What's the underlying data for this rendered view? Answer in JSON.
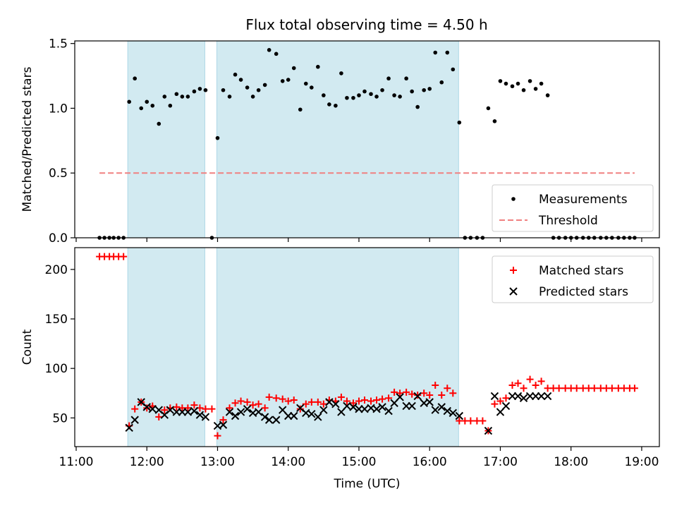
{
  "title": "Flux total observing time = 4.50 h",
  "colors": {
    "shade": "#add8e6",
    "measurement": "#000000",
    "threshold": "#f08080",
    "matched": "#ff0000",
    "predicted": "#000000"
  },
  "chart_data": [
    {
      "type": "scatter",
      "ylabel": "Matched/Predicted stars",
      "xlim": [
        10.98,
        19.25
      ],
      "ylim": [
        0,
        1.52
      ],
      "yticks": [
        0,
        0.5,
        1.0,
        1.5
      ],
      "ytick_labels": [
        "0.0",
        "0.5",
        "1.0",
        "1.5"
      ],
      "shaded_intervals": [
        [
          11.73,
          12.82
        ],
        [
          12.99,
          16.41
        ]
      ],
      "legend": {
        "position": "lower right",
        "entries": [
          "Measurements",
          "Threshold"
        ]
      },
      "threshold": {
        "name": "Threshold",
        "y": 0.5,
        "x_range": [
          11.33,
          18.9
        ]
      },
      "series": [
        {
          "name": "Measurements",
          "x": [
            11.33,
            11.4,
            11.47,
            11.53,
            11.6,
            11.67,
            11.75,
            11.83,
            11.92,
            12.0,
            12.08,
            12.17,
            12.25,
            12.33,
            12.42,
            12.5,
            12.58,
            12.67,
            12.75,
            12.83,
            12.92,
            13.0,
            13.08,
            13.17,
            13.25,
            13.33,
            13.42,
            13.5,
            13.58,
            13.67,
            13.73,
            13.83,
            13.92,
            14.0,
            14.08,
            14.17,
            14.25,
            14.33,
            14.42,
            14.5,
            14.58,
            14.67,
            14.75,
            14.83,
            14.92,
            15.0,
            15.08,
            15.17,
            15.25,
            15.33,
            15.42,
            15.5,
            15.58,
            15.67,
            15.75,
            15.83,
            15.92,
            16.0,
            16.08,
            16.17,
            16.25,
            16.33,
            16.42,
            16.5,
            16.58,
            16.67,
            16.75,
            16.83,
            16.92,
            17.0,
            17.08,
            17.17,
            17.25,
            17.33,
            17.42,
            17.5,
            17.58,
            17.67,
            17.75,
            17.83,
            17.92,
            18.0,
            18.08,
            18.17,
            18.25,
            18.33,
            18.42,
            18.5,
            18.58,
            18.67,
            18.75,
            18.83,
            18.9
          ],
          "y": [
            0,
            0,
            0,
            0,
            0,
            0,
            1.05,
            1.23,
            1.0,
            1.05,
            1.02,
            0.88,
            1.09,
            1.02,
            1.11,
            1.09,
            1.09,
            1.13,
            1.15,
            1.14,
            0.0,
            0.77,
            1.14,
            1.09,
            1.26,
            1.22,
            1.16,
            1.09,
            1.14,
            1.18,
            1.45,
            1.42,
            1.21,
            1.22,
            1.31,
            0.99,
            1.19,
            1.16,
            1.32,
            1.1,
            1.03,
            1.02,
            1.27,
            1.08,
            1.08,
            1.1,
            1.13,
            1.11,
            1.09,
            1.14,
            1.23,
            1.1,
            1.09,
            1.23,
            1.13,
            1.01,
            1.14,
            1.15,
            1.43,
            1.2,
            1.43,
            1.3,
            0.89,
            0,
            0,
            0,
            0,
            1.0,
            0.9,
            1.21,
            1.19,
            1.17,
            1.19,
            1.14,
            1.21,
            1.15,
            1.19,
            1.1,
            0,
            0,
            0,
            0,
            0,
            0,
            0,
            0,
            0,
            0,
            0,
            0,
            0,
            0,
            0
          ]
        }
      ]
    },
    {
      "type": "scatter",
      "ylabel": "Count",
      "xlabel": "Time (UTC)",
      "xlim": [
        10.98,
        19.25
      ],
      "ylim": [
        21,
        222
      ],
      "xticks": [
        11,
        12,
        13,
        14,
        15,
        16,
        17,
        18,
        19
      ],
      "xtick_labels": [
        "11:00",
        "12:00",
        "13:00",
        "14:00",
        "15:00",
        "16:00",
        "17:00",
        "18:00",
        "19:00"
      ],
      "yticks": [
        50,
        100,
        150,
        200
      ],
      "ytick_labels": [
        "50",
        "100",
        "150",
        "200"
      ],
      "shaded_intervals": [
        [
          11.73,
          12.82
        ],
        [
          12.99,
          16.41
        ]
      ],
      "legend": {
        "position": "upper right",
        "entries": [
          "Matched stars",
          "Predicted stars"
        ]
      },
      "series": [
        {
          "name": "Matched stars",
          "marker": "plus",
          "x": [
            11.33,
            11.4,
            11.47,
            11.53,
            11.6,
            11.67,
            11.75,
            11.83,
            11.92,
            12.0,
            12.08,
            12.17,
            12.25,
            12.33,
            12.42,
            12.5,
            12.58,
            12.67,
            12.75,
            12.83,
            12.92,
            13.0,
            13.08,
            13.17,
            13.25,
            13.33,
            13.42,
            13.5,
            13.58,
            13.67,
            13.73,
            13.83,
            13.92,
            14.0,
            14.08,
            14.17,
            14.25,
            14.33,
            14.42,
            14.5,
            14.58,
            14.67,
            14.75,
            14.83,
            14.92,
            15.0,
            15.08,
            15.17,
            15.25,
            15.33,
            15.42,
            15.5,
            15.58,
            15.67,
            15.75,
            15.83,
            15.92,
            16.0,
            16.08,
            16.17,
            16.25,
            16.33,
            16.42,
            16.5,
            16.58,
            16.67,
            16.75,
            16.83,
            16.92,
            17.0,
            17.08,
            17.17,
            17.25,
            17.33,
            17.42,
            17.5,
            17.58,
            17.67,
            17.75,
            17.83,
            17.92,
            18.0,
            18.08,
            18.17,
            18.25,
            18.33,
            18.42,
            18.5,
            18.58,
            18.67,
            18.75,
            18.83,
            18.9
          ],
          "y": [
            213,
            213,
            213,
            213,
            213,
            213,
            42,
            59,
            66,
            60,
            62,
            51,
            58,
            60,
            61,
            60,
            60,
            63,
            60,
            59,
            59,
            32,
            48,
            60,
            65,
            67,
            66,
            63,
            64,
            60,
            71,
            70,
            69,
            67,
            68,
            59,
            64,
            66,
            66,
            64,
            68,
            67,
            71,
            67,
            65,
            67,
            68,
            67,
            68,
            69,
            70,
            76,
            75,
            76,
            74,
            73,
            75,
            73,
            83,
            73,
            80,
            75,
            47,
            47,
            47,
            47,
            47,
            37,
            64,
            67,
            70,
            83,
            85,
            80,
            89,
            83,
            87,
            80,
            80,
            80,
            80,
            80,
            80,
            80,
            80,
            80,
            80,
            80,
            80,
            80,
            80,
            80,
            80
          ]
        },
        {
          "name": "Predicted stars",
          "marker": "x",
          "x": [
            11.75,
            11.83,
            11.92,
            12.0,
            12.08,
            12.17,
            12.25,
            12.33,
            12.42,
            12.5,
            12.58,
            12.67,
            12.75,
            12.83,
            13.0,
            13.08,
            13.17,
            13.25,
            13.33,
            13.42,
            13.5,
            13.58,
            13.67,
            13.73,
            13.83,
            13.92,
            14.0,
            14.08,
            14.17,
            14.25,
            14.33,
            14.42,
            14.5,
            14.58,
            14.67,
            14.75,
            14.83,
            14.92,
            15.0,
            15.08,
            15.17,
            15.25,
            15.33,
            15.42,
            15.5,
            15.58,
            15.67,
            15.75,
            15.83,
            15.92,
            16.0,
            16.08,
            16.17,
            16.25,
            16.33,
            16.42,
            16.83,
            16.92,
            17.0,
            17.08,
            17.17,
            17.25,
            17.33,
            17.42,
            17.5,
            17.58,
            17.67
          ],
          "y": [
            40,
            48,
            66,
            61,
            59,
            58,
            53,
            58,
            56,
            56,
            56,
            57,
            53,
            51,
            42,
            43,
            56,
            52,
            56,
            59,
            55,
            56,
            51,
            48,
            48,
            58,
            52,
            52,
            60,
            55,
            54,
            51,
            58,
            66,
            64,
            56,
            62,
            61,
            59,
            59,
            60,
            59,
            61,
            57,
            65,
            71,
            62,
            62,
            72,
            65,
            66,
            58,
            61,
            57,
            55,
            52,
            37,
            72,
            56,
            62,
            72,
            72,
            70,
            72,
            72,
            72,
            72
          ]
        }
      ]
    }
  ]
}
